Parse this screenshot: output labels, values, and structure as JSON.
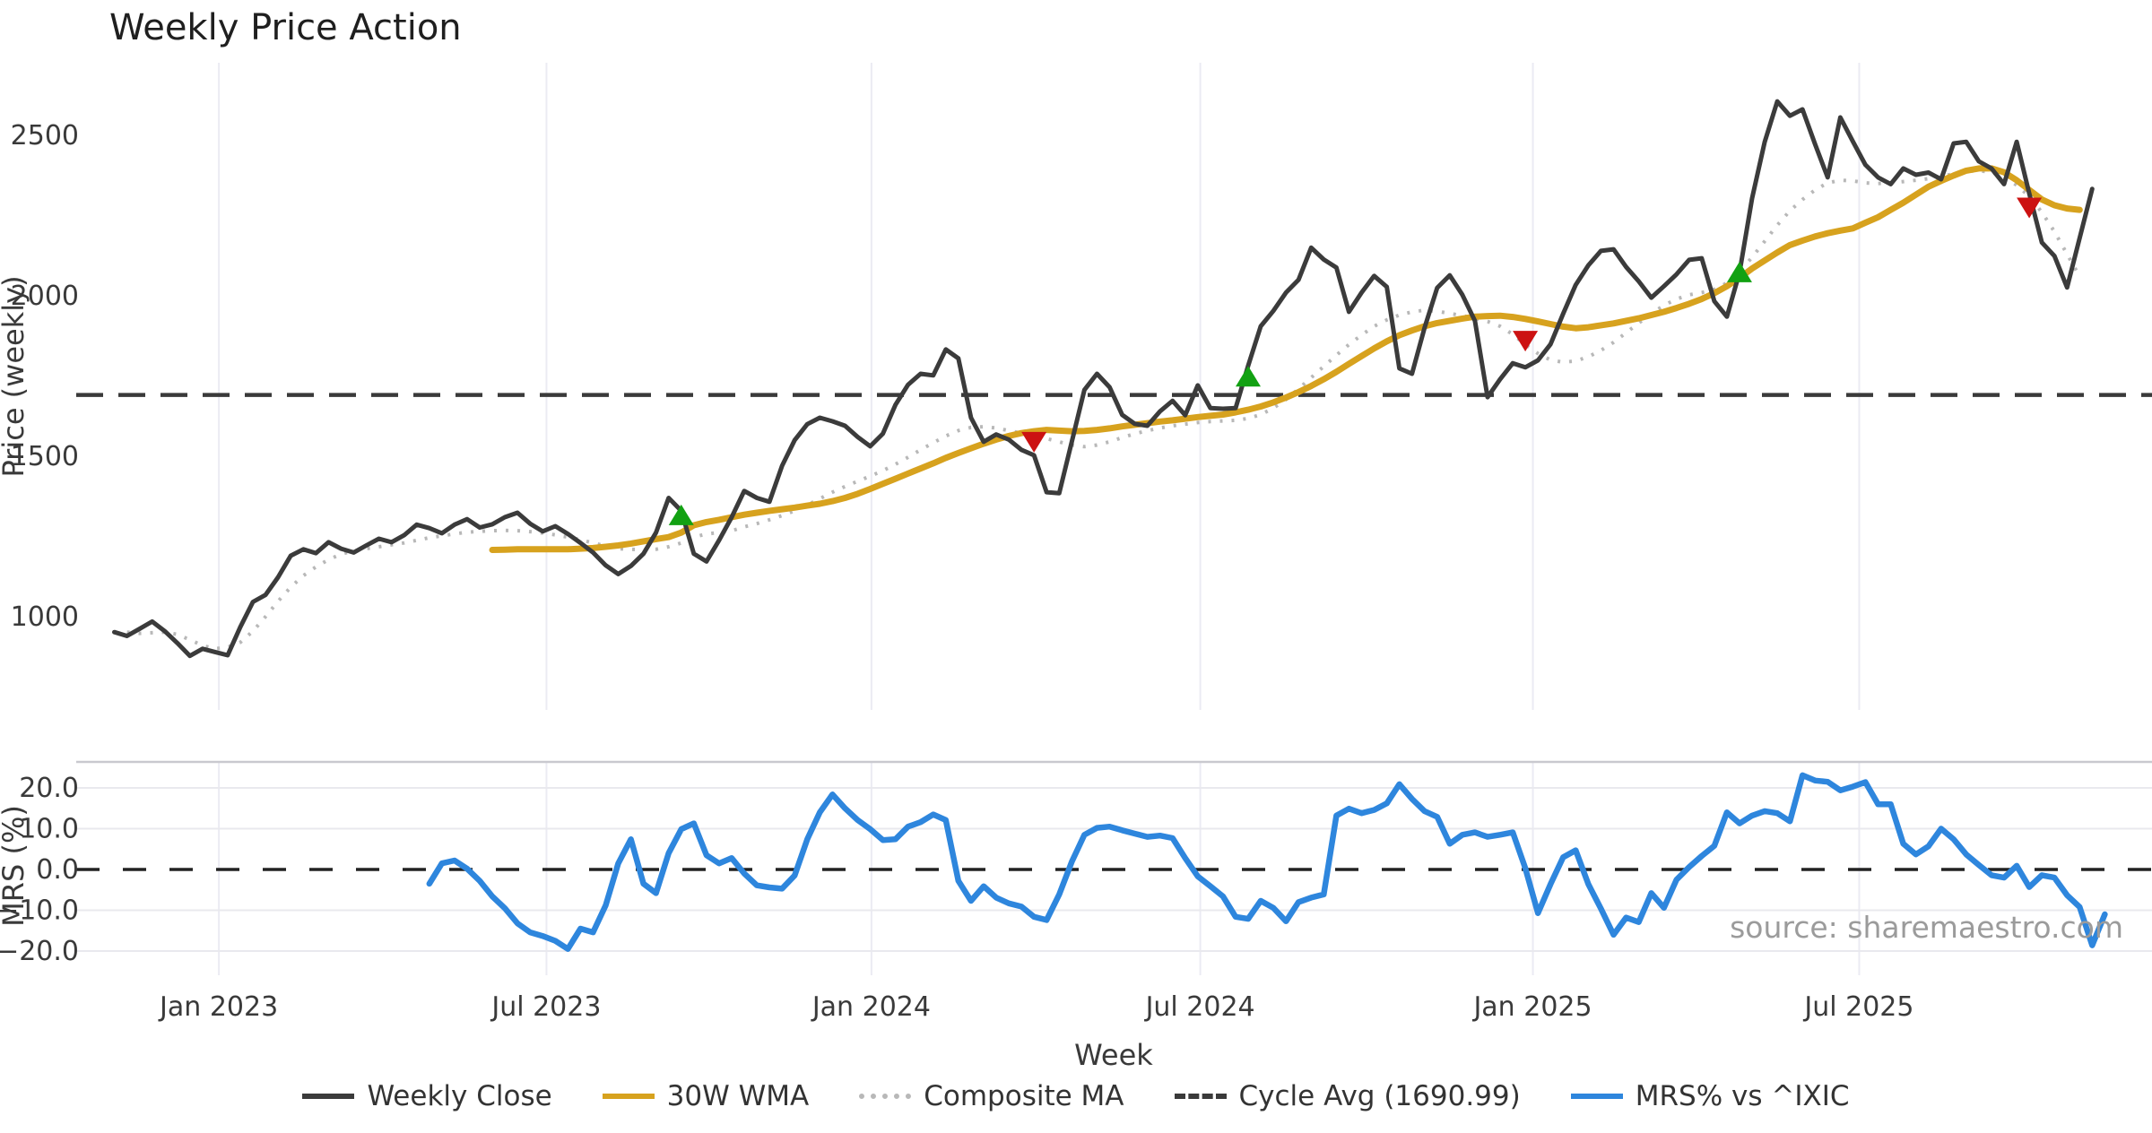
{
  "title": "Weekly Price Action",
  "source_label": "source: sharemaestro.com",
  "colors": {
    "weekly_close": "#3b3b3b",
    "wma_30w": "#d7a21e",
    "composite_ma": "#b8b8b8",
    "cycle_avg": "#3a3a3a",
    "mrs": "#2e86dd",
    "buy_marker": "#12a112",
    "sell_marker": "#cc1212",
    "gridline": "#ebebf3",
    "panel_border": "#c9c9cf"
  },
  "chart_data": {
    "type": "line",
    "x_axis": {
      "label": "Week",
      "ticks": [
        {
          "label": "Jan 2023",
          "week_index": 8.3
        },
        {
          "label": "Jul 2023",
          "week_index": 34.3
        },
        {
          "label": "Jan 2024",
          "week_index": 60.1
        },
        {
          "label": "Jul 2024",
          "week_index": 86.2
        },
        {
          "label": "Jan 2025",
          "week_index": 112.6
        },
        {
          "label": "Jul 2025",
          "week_index": 138.5
        }
      ],
      "start_week": "2022-11-07",
      "weeks_total": 157
    },
    "price_panel": {
      "ylabel": "Price (weekly)",
      "ylim": [
        700,
        2750
      ],
      "yticks": [
        {
          "label": "1000",
          "value": 1000
        },
        {
          "label": "1500",
          "value": 1500
        },
        {
          "label": "2000",
          "value": 2000
        },
        {
          "label": "2500",
          "value": 2500
        }
      ],
      "cycle_avg": {
        "label": "Cycle Avg (1690.99)",
        "value": 1690.99
      },
      "weekly_close": {
        "label": "Weekly Close",
        "start_index": 0,
        "values": [
          952,
          940,
          962,
          985,
          955,
          918,
          878,
          900,
          890,
          880,
          968,
          1046,
          1068,
          1123,
          1190,
          1210,
          1198,
          1232,
          1212,
          1200,
          1222,
          1243,
          1232,
          1254,
          1287,
          1276,
          1260,
          1287,
          1304,
          1278,
          1288,
          1310,
          1324,
          1290,
          1266,
          1282,
          1258,
          1230,
          1200,
          1160,
          1133,
          1158,
          1196,
          1262,
          1370,
          1330,
          1196,
          1172,
          1238,
          1310,
          1392,
          1370,
          1358,
          1470,
          1550,
          1600,
          1620,
          1609,
          1595,
          1560,
          1531,
          1570,
          1660,
          1723,
          1757,
          1752,
          1833,
          1805,
          1620,
          1545,
          1568,
          1552,
          1520,
          1503,
          1388,
          1385,
          1545,
          1707,
          1757,
          1715,
          1629,
          1601,
          1595,
          1640,
          1673,
          1628,
          1721,
          1650,
          1648,
          1650,
          1782,
          1905,
          1953,
          2010,
          2050,
          2150,
          2113,
          2088,
          1950,
          2010,
          2062,
          2028,
          1774,
          1757,
          1900,
          2025,
          2064,
          2003,
          1922,
          1684,
          1740,
          1790,
          1777,
          1799,
          1849,
          1944,
          2034,
          2095,
          2140,
          2145,
          2090,
          2045,
          1994,
          2030,
          2067,
          2112,
          2117,
          1983,
          1935,
          2073,
          2304,
          2480,
          2606,
          2561,
          2581,
          2472,
          2369,
          2556,
          2481,
          2408,
          2369,
          2348,
          2397,
          2377,
          2384,
          2363,
          2475,
          2480,
          2419,
          2397,
          2348,
          2480,
          2319,
          2166,
          2124,
          2026,
          2180,
          2333
        ]
      },
      "wma_30w": {
        "label": "30W WMA",
        "start_index": 30,
        "values": [
          1208,
          1209,
          1210,
          1210,
          1210,
          1210,
          1210,
          1212,
          1214,
          1218,
          1222,
          1228,
          1235,
          1242,
          1248,
          1262,
          1285,
          1295,
          1302,
          1310,
          1318,
          1324,
          1330,
          1335,
          1340,
          1346,
          1352,
          1360,
          1370,
          1383,
          1398,
          1414,
          1430,
          1446,
          1462,
          1478,
          1495,
          1510,
          1525,
          1539,
          1552,
          1563,
          1572,
          1578,
          1582,
          1580,
          1578,
          1579,
          1582,
          1587,
          1593,
          1598,
          1603,
          1608,
          1612,
          1617,
          1622,
          1626,
          1630,
          1637,
          1645,
          1655,
          1668,
          1683,
          1700,
          1719,
          1740,
          1763,
          1788,
          1812,
          1836,
          1858,
          1877,
          1892,
          1905,
          1915,
          1922,
          1929,
          1935,
          1937,
          1938,
          1934,
          1928,
          1920,
          1912,
          1904,
          1899,
          1902,
          1908,
          1914,
          1922,
          1930,
          1940,
          1950,
          1962,
          1975,
          1990,
          2008,
          2030,
          2056,
          2085,
          2110,
          2135,
          2158,
          2172,
          2185,
          2195,
          2203,
          2210,
          2228,
          2245,
          2268,
          2290,
          2315,
          2340,
          2358,
          2375,
          2390,
          2397,
          2397,
          2385,
          2360,
          2330,
          2300,
          2282,
          2272,
          2268
        ]
      },
      "composite_ma": {
        "label": "Composite MA",
        "start_index": 1,
        "values": [
          952,
          948,
          950,
          952,
          945,
          928,
          910,
          900,
          905,
          920,
          955,
          1000,
          1048,
          1092,
          1128,
          1155,
          1178,
          1195,
          1205,
          1212,
          1218,
          1224,
          1230,
          1238,
          1246,
          1252,
          1258,
          1263,
          1266,
          1268,
          1269,
          1268,
          1265,
          1261,
          1255,
          1248,
          1240,
          1230,
          1220,
          1212,
          1210,
          1208,
          1210,
          1218,
          1230,
          1248,
          1258,
          1262,
          1268,
          1280,
          1290,
          1302,
          1315,
          1330,
          1348,
          1368,
          1388,
          1406,
          1422,
          1438,
          1455,
          1475,
          1497,
          1520,
          1542,
          1563,
          1580,
          1590,
          1592,
          1588,
          1580,
          1572,
          1565,
          1555,
          1545,
          1535,
          1530,
          1535,
          1545,
          1558,
          1570,
          1580,
          1588,
          1595,
          1600,
          1605,
          1608,
          1610,
          1612,
          1618,
          1630,
          1650,
          1677,
          1710,
          1745,
          1780,
          1815,
          1848,
          1878,
          1905,
          1925,
          1940,
          1950,
          1955,
          1952,
          1945,
          1938,
          1930,
          1920,
          1905,
          1880,
          1848,
          1820,
          1800,
          1793,
          1797,
          1810,
          1830,
          1855,
          1885,
          1915,
          1945,
          1970,
          1990,
          2003,
          2010,
          2020,
          2040,
          2075,
          2120,
          2170,
          2220,
          2265,
          2300,
          2330,
          2352,
          2360,
          2358,
          2352,
          2350,
          2352,
          2356,
          2360,
          2365,
          2372,
          2380,
          2388,
          2390,
          2385,
          2370,
          2345,
          2310,
          2260,
          2200,
          2130,
          2060
        ]
      },
      "signals": {
        "buy": [
          {
            "week_index": 45,
            "price": 1316
          },
          {
            "week_index": 90,
            "price": 1748
          },
          {
            "week_index": 129,
            "price": 2073
          }
        ],
        "sell": [
          {
            "week_index": 73,
            "price": 1545
          },
          {
            "week_index": 112,
            "price": 1860
          },
          {
            "week_index": 152,
            "price": 2275
          }
        ]
      }
    },
    "mrs_panel": {
      "ylabel": "MRS (%)",
      "ylim": [
        -26,
        26
      ],
      "yticks": [
        {
          "label": "20.0",
          "value": 20
        },
        {
          "label": "10.0",
          "value": 10
        },
        {
          "label": "0.0",
          "value": 0
        },
        {
          "label": "−10.0",
          "value": -10
        },
        {
          "label": "−20.0",
          "value": -20
        }
      ],
      "zero_line": 0,
      "mrs": {
        "label": "MRS% vs ^IXIC",
        "start_index": 25,
        "values": [
          -3.5,
          1.5,
          2.2,
          0.2,
          -2.8,
          -6.6,
          -9.5,
          -13.2,
          -15.4,
          -16.3,
          -17.5,
          -19.5,
          -14.5,
          -15.4,
          -8.8,
          1.5,
          7.4,
          -3.5,
          -5.8,
          4.0,
          9.9,
          11.3,
          3.5,
          1.5,
          2.8,
          -1.0,
          -3.9,
          -4.4,
          -4.7,
          -1.5,
          7.4,
          14.0,
          18.4,
          15.0,
          12.1,
          9.9,
          7.2,
          7.4,
          10.5,
          11.6,
          13.5,
          12.1,
          -2.8,
          -7.7,
          -4.1,
          -6.9,
          -8.3,
          -9.1,
          -11.6,
          -12.4,
          -6.1,
          1.9,
          8.5,
          10.2,
          10.5,
          9.6,
          8.8,
          8.0,
          8.3,
          7.7,
          2.8,
          -1.7,
          -4.1,
          -6.6,
          -11.6,
          -12.1,
          -7.7,
          -9.4,
          -12.7,
          -8.0,
          -6.9,
          -6.1,
          13.2,
          14.9,
          13.8,
          14.6,
          16.2,
          20.9,
          17.3,
          14.3,
          12.9,
          6.3,
          8.5,
          9.1,
          8.0,
          8.5,
          9.1,
          0.3,
          -10.7,
          -3.6,
          3.0,
          4.7,
          -3.6,
          -9.6,
          -16.0,
          -11.8,
          -12.9,
          -5.8,
          -9.4,
          -2.5,
          0.6,
          3.3,
          5.8,
          14.0,
          11.3,
          13.2,
          14.3,
          13.8,
          11.8,
          23.1,
          21.8,
          21.5,
          19.4,
          20.3,
          21.4,
          16.0,
          16.0,
          6.3,
          3.7,
          5.7,
          10.0,
          7.4,
          3.7,
          1.1,
          -1.4,
          -2.0,
          0.9,
          -4.3,
          -1.4,
          -2.0,
          -6.3,
          -9.2,
          -18.6,
          -11.0
        ]
      }
    },
    "legend": [
      {
        "key": "weekly_close",
        "label": "Weekly Close",
        "style": "solid"
      },
      {
        "key": "wma_30w",
        "label": "30W WMA",
        "style": "solid"
      },
      {
        "key": "composite_ma",
        "label": "Composite MA",
        "style": "dotted"
      },
      {
        "key": "cycle_avg",
        "label": "Cycle Avg (1690.99)",
        "style": "dashed"
      },
      {
        "key": "mrs",
        "label": "MRS% vs ^IXIC",
        "style": "solid"
      }
    ]
  }
}
